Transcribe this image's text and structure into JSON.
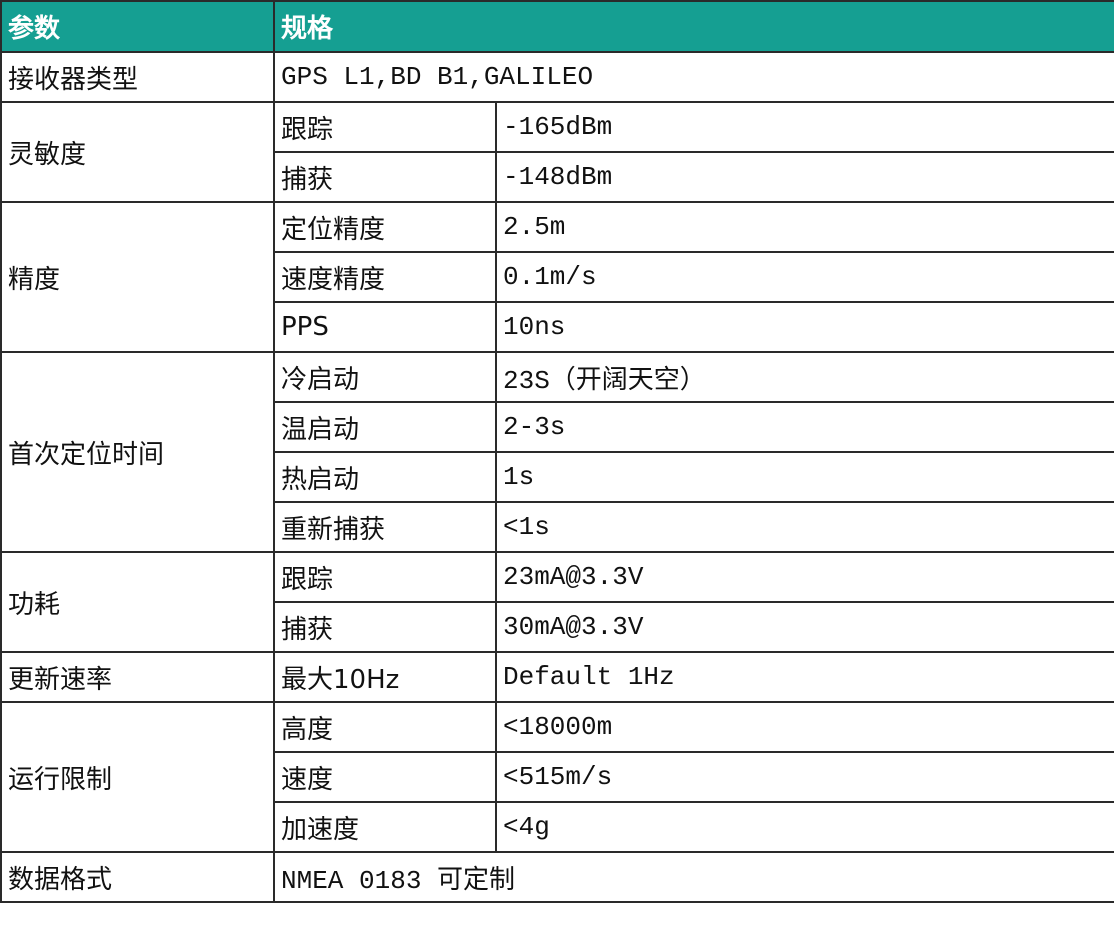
{
  "header": [
    "参数",
    "规格"
  ],
  "groups": [
    {
      "param": "接收器类型",
      "spec": "GPS L1,BD B1,GALILEO"
    },
    {
      "param": "灵敏度",
      "items": [
        [
          "跟踪",
          "-165dBm"
        ],
        [
          "捕获",
          "-148dBm"
        ]
      ]
    },
    {
      "param": "精度",
      "items": [
        [
          "定位精度",
          "2.5m"
        ],
        [
          "速度精度",
          "0.1m/s"
        ],
        [
          "PPS",
          "10ns"
        ]
      ]
    },
    {
      "param": "首次定位时间",
      "items": [
        [
          "冷启动",
          "23S（开阔天空）"
        ],
        [
          "温启动",
          "2-3s"
        ],
        [
          "热启动",
          "1s"
        ],
        [
          "重新捕获",
          "<1s"
        ]
      ]
    },
    {
      "param": "功耗",
      "items": [
        [
          "跟踪",
          "23mA@3.3V"
        ],
        [
          "捕获",
          "30mA@3.3V"
        ]
      ]
    },
    {
      "param": "更新速率",
      "items": [
        [
          "最大10Hz",
          "Default 1Hz"
        ]
      ]
    },
    {
      "param": "运行限制",
      "items": [
        [
          "高度",
          "<18000m"
        ],
        [
          "速度",
          "<515m/s"
        ],
        [
          "加速度",
          "<4g"
        ]
      ]
    },
    {
      "param": "数据格式",
      "spec": "NMEA 0183 可定制"
    }
  ]
}
